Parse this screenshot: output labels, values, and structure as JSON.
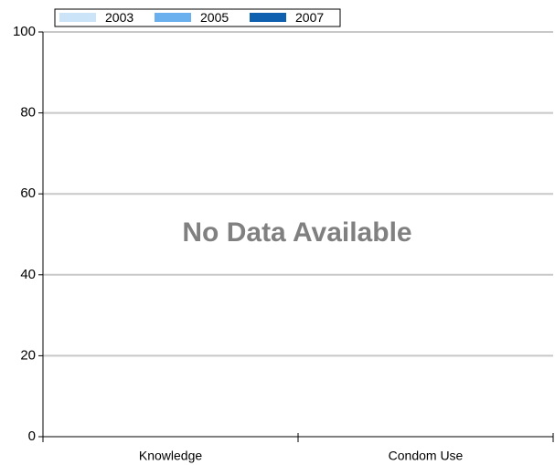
{
  "chart_data": {
    "type": "bar",
    "annotation": "No Data Available",
    "categories": [
      "Knowledge",
      "Condom Use"
    ],
    "series": [
      {
        "name": "2003",
        "color": "#cce4f7",
        "values": [
          null,
          null
        ]
      },
      {
        "name": "2005",
        "color": "#6ab0ee",
        "values": [
          null,
          null
        ]
      },
      {
        "name": "2007",
        "color": "#1060b0",
        "values": [
          null,
          null
        ]
      }
    ],
    "ylim": [
      0,
      100
    ],
    "yticks": [
      0,
      20,
      40,
      60,
      80,
      100
    ],
    "grid": true,
    "legend": "top-left"
  }
}
